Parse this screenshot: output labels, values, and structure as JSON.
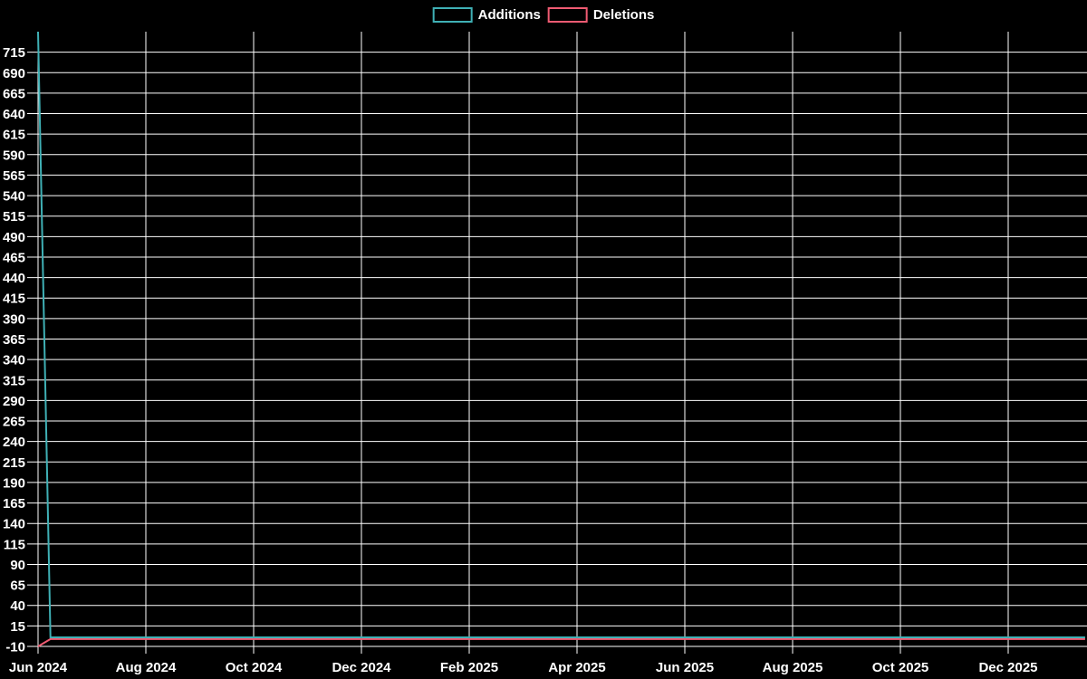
{
  "legend": {
    "items": [
      {
        "label": "Additions",
        "color": "#3fb0b5"
      },
      {
        "label": "Deletions",
        "color": "#ef5b72"
      }
    ]
  },
  "colors": {
    "background": "#000000",
    "grid": "#ffffff",
    "text": "#ffffff"
  },
  "chart_data": {
    "type": "line",
    "title": "",
    "xlabel": "",
    "ylabel": "",
    "grid": true,
    "legend_position": "top-center",
    "x_axis": {
      "tick_labels": [
        "Jun 2024",
        "Aug 2024",
        "Oct 2024",
        "Dec 2024",
        "Feb 2025",
        "Apr 2025",
        "Jun 2025",
        "Aug 2025",
        "Oct 2025",
        "Dec 2025"
      ],
      "tick_interval_months": 2,
      "start_date": "2024-06-01",
      "end_date": "2026-01-14"
    },
    "y_axis": {
      "tick_labels": [
        -10,
        15,
        40,
        65,
        90,
        115,
        140,
        165,
        190,
        215,
        240,
        265,
        290,
        315,
        340,
        365,
        390,
        415,
        440,
        465,
        490,
        515,
        540,
        565,
        590,
        615,
        640,
        665,
        690,
        715
      ],
      "min": -10,
      "max": 740
    },
    "series": [
      {
        "name": "Additions",
        "color": "#3fb0b5",
        "points": [
          [
            "2024-06-01",
            740
          ],
          [
            "2024-06-08",
            1
          ],
          [
            "2026-01-14",
            1
          ]
        ]
      },
      {
        "name": "Deletions",
        "color": "#ef5b72",
        "points": [
          [
            "2024-06-01",
            -10
          ],
          [
            "2024-06-08",
            -1
          ],
          [
            "2026-01-14",
            -1
          ]
        ]
      }
    ]
  }
}
